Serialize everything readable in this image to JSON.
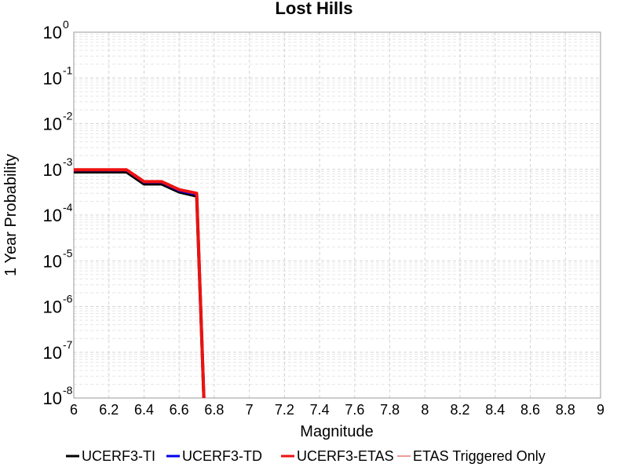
{
  "chart_data": {
    "type": "line",
    "title": "Lost Hills",
    "xlabel": "Magnitude",
    "ylabel": "1 Year Probability",
    "xlim": [
      6,
      9
    ],
    "ylim": [
      1e-08,
      1
    ],
    "yscale": "log",
    "grid": true,
    "legend_position": "bottom",
    "x_ticks": [
      "6",
      "6.2",
      "6.4",
      "6.6",
      "6.8",
      "7",
      "7.2",
      "7.4",
      "7.6",
      "7.8",
      "8",
      "8.2",
      "8.4",
      "8.6",
      "8.8",
      "9"
    ],
    "y_ticks": [
      {
        "base": "10",
        "exp": "0"
      },
      {
        "base": "10",
        "exp": "-1"
      },
      {
        "base": "10",
        "exp": "-2"
      },
      {
        "base": "10",
        "exp": "-3"
      },
      {
        "base": "10",
        "exp": "-4"
      },
      {
        "base": "10",
        "exp": "-5"
      },
      {
        "base": "10",
        "exp": "-6"
      },
      {
        "base": "10",
        "exp": "-7"
      },
      {
        "base": "10",
        "exp": "-8"
      }
    ],
    "series": [
      {
        "name": "UCERF3-TI",
        "color": "#000000",
        "x": [
          6.0,
          6.1,
          6.2,
          6.3,
          6.4,
          6.5,
          6.6,
          6.7,
          6.75
        ],
        "y": [
          0.00088,
          0.00088,
          0.00088,
          0.00088,
          0.00048,
          0.00048,
          0.00032,
          0.00026,
          1e-09
        ]
      },
      {
        "name": "UCERF3-TD",
        "color": "#0000ee",
        "x": [
          6.0,
          6.1,
          6.2,
          6.3,
          6.4,
          6.5,
          6.6,
          6.7,
          6.75
        ],
        "y": [
          0.00095,
          0.00095,
          0.00095,
          0.00095,
          0.00052,
          0.00052,
          0.00034,
          0.00028,
          1e-09
        ]
      },
      {
        "name": "UCERF3-ETAS",
        "color": "#ee1111",
        "x": [
          6.0,
          6.1,
          6.2,
          6.3,
          6.4,
          6.5,
          6.6,
          6.7,
          6.75
        ],
        "y": [
          0.00098,
          0.00098,
          0.00098,
          0.00098,
          0.00054,
          0.00054,
          0.00036,
          0.0003,
          1e-09
        ]
      },
      {
        "name": "ETAS Triggered Only",
        "color": "#f29a9a",
        "x": [],
        "y": []
      }
    ]
  }
}
